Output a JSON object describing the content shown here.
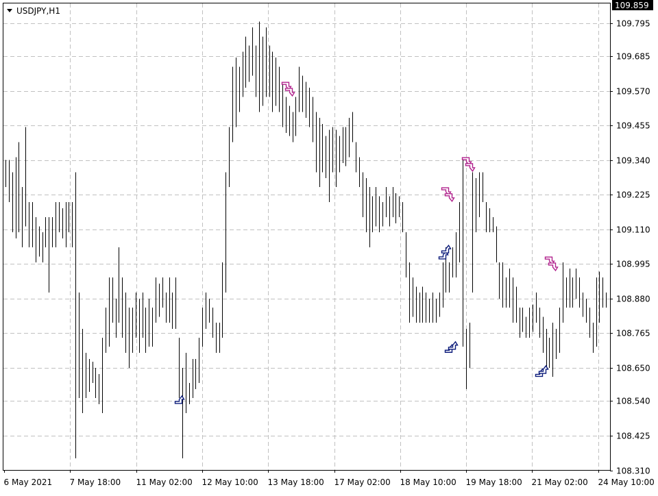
{
  "symbol_label": "USDJPY,H1",
  "current_price_label": "109.859",
  "colors": {
    "background": "#ffffff",
    "bars": "#000000",
    "grid": "#c0c0c0",
    "buy_arrow": "#0a1a7a",
    "sell_arrow": "#b0208c",
    "price_tag_bg": "#000000",
    "price_tag_text": "#ffffff"
  },
  "chart_data": {
    "type": "bar",
    "title": "USDJPY,H1",
    "grid": true,
    "ylim": [
      108.31,
      109.859
    ],
    "y_ticks": [
      "109.795",
      "109.685",
      "109.570",
      "109.455",
      "109.340",
      "109.225",
      "109.110",
      "108.995",
      "108.880",
      "108.765",
      "108.650",
      "108.540",
      "108.425",
      "108.310"
    ],
    "x_ticks": [
      "6 May 2021",
      "7 May 18:00",
      "11 May 02:00",
      "12 May 10:00",
      "13 May 18:00",
      "17 May 02:00",
      "18 May 10:00",
      "19 May 18:00",
      "21 May 02:00",
      "24 May 10:00"
    ],
    "ohlc_bars": [
      {
        "i": 0,
        "h": 109.34,
        "l": 109.25
      },
      {
        "i": 1,
        "h": 109.34,
        "l": 109.2
      },
      {
        "i": 2,
        "h": 109.3,
        "l": 109.1
      },
      {
        "i": 3,
        "h": 109.35,
        "l": 109.08
      },
      {
        "i": 4,
        "h": 109.4,
        "l": 109.1
      },
      {
        "i": 5,
        "h": 109.25,
        "l": 109.05
      },
      {
        "i": 6,
        "h": 109.45,
        "l": 109.12
      },
      {
        "i": 7,
        "h": 109.2,
        "l": 109.05
      },
      {
        "i": 8,
        "h": 109.2,
        "l": 109.05
      },
      {
        "i": 9,
        "h": 109.15,
        "l": 109.0
      },
      {
        "i": 10,
        "h": 109.12,
        "l": 109.02
      },
      {
        "i": 11,
        "h": 109.1,
        "l": 109.0
      },
      {
        "i": 12,
        "h": 109.15,
        "l": 109.05
      },
      {
        "i": 13,
        "h": 109.15,
        "l": 108.9
      },
      {
        "i": 14,
        "h": 109.15,
        "l": 109.05
      },
      {
        "i": 15,
        "h": 109.2,
        "l": 109.05
      },
      {
        "i": 16,
        "h": 109.2,
        "l": 109.1
      },
      {
        "i": 17,
        "h": 109.18,
        "l": 109.08
      },
      {
        "i": 18,
        "h": 109.2,
        "l": 109.05
      },
      {
        "i": 19,
        "h": 109.2,
        "l": 109.1
      },
      {
        "i": 20,
        "h": 109.2,
        "l": 109.05
      },
      {
        "i": 21,
        "h": 109.3,
        "l": 108.35
      },
      {
        "i": 22,
        "h": 108.9,
        "l": 108.55
      },
      {
        "i": 23,
        "h": 108.78,
        "l": 108.5
      },
      {
        "i": 24,
        "h": 108.7,
        "l": 108.55
      },
      {
        "i": 25,
        "h": 108.68,
        "l": 108.57
      },
      {
        "i": 26,
        "h": 108.67,
        "l": 108.6
      },
      {
        "i": 27,
        "h": 108.65,
        "l": 108.55
      },
      {
        "i": 28,
        "h": 108.63,
        "l": 108.53
      },
      {
        "i": 29,
        "h": 108.75,
        "l": 108.5
      },
      {
        "i": 30,
        "h": 108.85,
        "l": 108.7
      },
      {
        "i": 31,
        "h": 108.95,
        "l": 108.72
      },
      {
        "i": 32,
        "h": 108.95,
        "l": 108.8
      },
      {
        "i": 33,
        "h": 108.88,
        "l": 108.75
      },
      {
        "i": 34,
        "h": 109.05,
        "l": 108.8
      },
      {
        "i": 35,
        "h": 108.95,
        "l": 108.75
      },
      {
        "i": 36,
        "h": 108.9,
        "l": 108.7
      },
      {
        "i": 37,
        "h": 108.85,
        "l": 108.65
      },
      {
        "i": 38,
        "h": 108.85,
        "l": 108.7
      },
      {
        "i": 39,
        "h": 108.9,
        "l": 108.75
      },
      {
        "i": 40,
        "h": 108.88,
        "l": 108.7
      },
      {
        "i": 41,
        "h": 108.9,
        "l": 108.75
      },
      {
        "i": 42,
        "h": 108.85,
        "l": 108.7
      },
      {
        "i": 43,
        "h": 108.88,
        "l": 108.72
      },
      {
        "i": 44,
        "h": 108.85,
        "l": 108.72
      },
      {
        "i": 45,
        "h": 108.95,
        "l": 108.8
      },
      {
        "i": 46,
        "h": 108.93,
        "l": 108.82
      },
      {
        "i": 47,
        "h": 108.95,
        "l": 108.85
      },
      {
        "i": 48,
        "h": 108.9,
        "l": 108.8
      },
      {
        "i": 49,
        "h": 108.95,
        "l": 108.8
      },
      {
        "i": 50,
        "h": 108.9,
        "l": 108.78
      },
      {
        "i": 51,
        "h": 108.95,
        "l": 108.78
      },
      {
        "i": 52,
        "h": 108.75,
        "l": 108.55
      },
      {
        "i": 53,
        "h": 108.65,
        "l": 108.35
      },
      {
        "i": 54,
        "h": 108.7,
        "l": 108.5
      },
      {
        "i": 55,
        "h": 108.6,
        "l": 108.53
      },
      {
        "i": 56,
        "h": 108.68,
        "l": 108.55
      },
      {
        "i": 57,
        "h": 108.68,
        "l": 108.58
      },
      {
        "i": 58,
        "h": 108.75,
        "l": 108.6
      },
      {
        "i": 59,
        "h": 108.85,
        "l": 108.72
      },
      {
        "i": 60,
        "h": 108.9,
        "l": 108.78
      },
      {
        "i": 61,
        "h": 108.88,
        "l": 108.8
      },
      {
        "i": 62,
        "h": 108.85,
        "l": 108.75
      },
      {
        "i": 63,
        "h": 108.8,
        "l": 108.7
      },
      {
        "i": 64,
        "h": 108.8,
        "l": 108.7
      },
      {
        "i": 65,
        "h": 109.0,
        "l": 108.75
      },
      {
        "i": 66,
        "h": 109.3,
        "l": 108.9
      },
      {
        "i": 67,
        "h": 109.45,
        "l": 109.25
      },
      {
        "i": 68,
        "h": 109.65,
        "l": 109.4
      },
      {
        "i": 69,
        "h": 109.68,
        "l": 109.45
      },
      {
        "i": 70,
        "h": 109.65,
        "l": 109.5
      },
      {
        "i": 71,
        "h": 109.7,
        "l": 109.55
      },
      {
        "i": 72,
        "h": 109.75,
        "l": 109.58
      },
      {
        "i": 73,
        "h": 109.72,
        "l": 109.6
      },
      {
        "i": 74,
        "h": 109.78,
        "l": 109.62
      },
      {
        "i": 75,
        "h": 109.72,
        "l": 109.55
      },
      {
        "i": 76,
        "h": 109.8,
        "l": 109.5
      },
      {
        "i": 77,
        "h": 109.75,
        "l": 109.52
      },
      {
        "i": 78,
        "h": 109.78,
        "l": 109.55
      },
      {
        "i": 79,
        "h": 109.72,
        "l": 109.55
      },
      {
        "i": 80,
        "h": 109.7,
        "l": 109.5
      },
      {
        "i": 81,
        "h": 109.68,
        "l": 109.52
      },
      {
        "i": 82,
        "h": 109.65,
        "l": 109.5
      },
      {
        "i": 83,
        "h": 109.6,
        "l": 109.45
      },
      {
        "i": 84,
        "h": 109.55,
        "l": 109.43
      },
      {
        "i": 85,
        "h": 109.52,
        "l": 109.42
      },
      {
        "i": 86,
        "h": 109.5,
        "l": 109.4
      },
      {
        "i": 87,
        "h": 109.55,
        "l": 109.42
      },
      {
        "i": 88,
        "h": 109.65,
        "l": 109.5
      },
      {
        "i": 89,
        "h": 109.62,
        "l": 109.5
      },
      {
        "i": 90,
        "h": 109.6,
        "l": 109.48
      },
      {
        "i": 91,
        "h": 109.58,
        "l": 109.45
      },
      {
        "i": 92,
        "h": 109.55,
        "l": 109.4
      },
      {
        "i": 93,
        "h": 109.5,
        "l": 109.3
      },
      {
        "i": 94,
        "h": 109.48,
        "l": 109.25
      },
      {
        "i": 95,
        "h": 109.46,
        "l": 109.3
      },
      {
        "i": 96,
        "h": 109.42,
        "l": 109.28
      },
      {
        "i": 97,
        "h": 109.44,
        "l": 109.2
      },
      {
        "i": 98,
        "h": 109.45,
        "l": 109.3
      },
      {
        "i": 99,
        "h": 109.44,
        "l": 109.25
      },
      {
        "i": 100,
        "h": 109.42,
        "l": 109.3
      },
      {
        "i": 101,
        "h": 109.45,
        "l": 109.33
      },
      {
        "i": 102,
        "h": 109.45,
        "l": 109.32
      },
      {
        "i": 103,
        "h": 109.48,
        "l": 109.35
      },
      {
        "i": 104,
        "h": 109.5,
        "l": 109.4
      },
      {
        "i": 105,
        "h": 109.4,
        "l": 109.3
      },
      {
        "i": 106,
        "h": 109.35,
        "l": 109.25
      },
      {
        "i": 107,
        "h": 109.3,
        "l": 109.15
      },
      {
        "i": 108,
        "h": 109.28,
        "l": 109.1
      },
      {
        "i": 109,
        "h": 109.25,
        "l": 109.05
      },
      {
        "i": 110,
        "h": 109.22,
        "l": 109.1
      },
      {
        "i": 111,
        "h": 109.25,
        "l": 109.12
      },
      {
        "i": 112,
        "h": 109.22,
        "l": 109.1
      },
      {
        "i": 113,
        "h": 109.2,
        "l": 109.12
      },
      {
        "i": 114,
        "h": 109.25,
        "l": 109.15
      },
      {
        "i": 115,
        "h": 109.22,
        "l": 109.12
      },
      {
        "i": 116,
        "h": 109.25,
        "l": 109.15
      },
      {
        "i": 117,
        "h": 109.23,
        "l": 109.13
      },
      {
        "i": 118,
        "h": 109.22,
        "l": 109.15
      },
      {
        "i": 119,
        "h": 109.2,
        "l": 109.1
      },
      {
        "i": 120,
        "h": 109.1,
        "l": 108.95
      },
      {
        "i": 121,
        "h": 109.0,
        "l": 108.8
      },
      {
        "i": 122,
        "h": 108.95,
        "l": 108.82
      },
      {
        "i": 123,
        "h": 108.92,
        "l": 108.8
      },
      {
        "i": 124,
        "h": 108.9,
        "l": 108.8
      },
      {
        "i": 125,
        "h": 108.92,
        "l": 108.8
      },
      {
        "i": 126,
        "h": 108.9,
        "l": 108.8
      },
      {
        "i": 127,
        "h": 108.88,
        "l": 108.8
      },
      {
        "i": 128,
        "h": 108.9,
        "l": 108.8
      },
      {
        "i": 129,
        "h": 108.88,
        "l": 108.8
      },
      {
        "i": 130,
        "h": 108.9,
        "l": 108.82
      },
      {
        "i": 131,
        "h": 109.0,
        "l": 108.85
      },
      {
        "i": 132,
        "h": 109.05,
        "l": 108.9
      },
      {
        "i": 133,
        "h": 109.0,
        "l": 108.9
      },
      {
        "i": 134,
        "h": 109.05,
        "l": 108.95
      },
      {
        "i": 135,
        "h": 109.1,
        "l": 108.95
      },
      {
        "i": 136,
        "h": 109.2,
        "l": 109.0
      },
      {
        "i": 137,
        "h": 109.35,
        "l": 108.72
      },
      {
        "i": 138,
        "h": 108.78,
        "l": 108.58
      },
      {
        "i": 139,
        "h": 108.8,
        "l": 108.65
      },
      {
        "i": 140,
        "h": 109.3,
        "l": 108.9
      },
      {
        "i": 141,
        "h": 109.28,
        "l": 109.1
      },
      {
        "i": 142,
        "h": 109.3,
        "l": 109.15
      },
      {
        "i": 143,
        "h": 109.3,
        "l": 109.2
      },
      {
        "i": 144,
        "h": 109.2,
        "l": 109.1
      },
      {
        "i": 145,
        "h": 109.18,
        "l": 109.1
      },
      {
        "i": 146,
        "h": 109.15,
        "l": 109.1
      },
      {
        "i": 147,
        "h": 109.12,
        "l": 109.0
      },
      {
        "i": 148,
        "h": 109.0,
        "l": 108.88
      },
      {
        "i": 149,
        "h": 109.0,
        "l": 108.85
      },
      {
        "i": 150,
        "h": 108.95,
        "l": 108.85
      },
      {
        "i": 151,
        "h": 108.98,
        "l": 108.85
      },
      {
        "i": 152,
        "h": 108.95,
        "l": 108.8
      },
      {
        "i": 153,
        "h": 108.92,
        "l": 108.8
      },
      {
        "i": 154,
        "h": 108.85,
        "l": 108.75
      },
      {
        "i": 155,
        "h": 108.85,
        "l": 108.77
      },
      {
        "i": 156,
        "h": 108.82,
        "l": 108.75
      },
      {
        "i": 157,
        "h": 108.85,
        "l": 108.75
      },
      {
        "i": 158,
        "h": 108.86,
        "l": 108.77
      },
      {
        "i": 159,
        "h": 108.9,
        "l": 108.8
      },
      {
        "i": 160,
        "h": 108.85,
        "l": 108.75
      },
      {
        "i": 161,
        "h": 108.82,
        "l": 108.7
      },
      {
        "i": 162,
        "h": 108.78,
        "l": 108.65
      },
      {
        "i": 163,
        "h": 108.75,
        "l": 108.65
      },
      {
        "i": 164,
        "h": 108.8,
        "l": 108.62
      },
      {
        "i": 165,
        "h": 108.78,
        "l": 108.68
      },
      {
        "i": 166,
        "h": 108.85,
        "l": 108.7
      },
      {
        "i": 167,
        "h": 109.0,
        "l": 108.8
      },
      {
        "i": 168,
        "h": 108.95,
        "l": 108.85
      },
      {
        "i": 169,
        "h": 108.98,
        "l": 108.85
      },
      {
        "i": 170,
        "h": 108.95,
        "l": 108.85
      },
      {
        "i": 171,
        "h": 108.98,
        "l": 108.88
      },
      {
        "i": 172,
        "h": 108.95,
        "l": 108.85
      },
      {
        "i": 173,
        "h": 108.9,
        "l": 108.82
      },
      {
        "i": 174,
        "h": 108.88,
        "l": 108.8
      },
      {
        "i": 175,
        "h": 108.85,
        "l": 108.75
      },
      {
        "i": 176,
        "h": 108.8,
        "l": 108.7
      },
      {
        "i": 177,
        "h": 108.95,
        "l": 108.72
      },
      {
        "i": 178,
        "h": 108.97,
        "l": 108.8
      },
      {
        "i": 179,
        "h": 108.95,
        "l": 108.85
      },
      {
        "i": 180,
        "h": 108.9,
        "l": 108.85
      }
    ],
    "arrows": [
      {
        "side": "buy",
        "i": 52,
        "price": 108.55
      },
      {
        "side": "sell",
        "i": 84,
        "price": 109.58
      },
      {
        "side": "sell",
        "i": 85,
        "price": 109.56
      },
      {
        "side": "buy",
        "i": 131,
        "price": 109.03
      },
      {
        "side": "buy",
        "i": 132,
        "price": 109.05
      },
      {
        "side": "sell",
        "i": 132,
        "price": 109.23
      },
      {
        "side": "sell",
        "i": 133,
        "price": 109.21
      },
      {
        "side": "buy",
        "i": 133,
        "price": 108.72
      },
      {
        "side": "buy",
        "i": 134,
        "price": 108.73
      },
      {
        "side": "sell",
        "i": 138,
        "price": 109.33
      },
      {
        "side": "sell",
        "i": 139,
        "price": 109.31
      },
      {
        "side": "buy",
        "i": 160,
        "price": 108.64
      },
      {
        "side": "buy",
        "i": 161,
        "price": 108.65
      },
      {
        "side": "sell",
        "i": 163,
        "price": 109.0
      },
      {
        "side": "sell",
        "i": 164,
        "price": 108.98
      }
    ]
  }
}
